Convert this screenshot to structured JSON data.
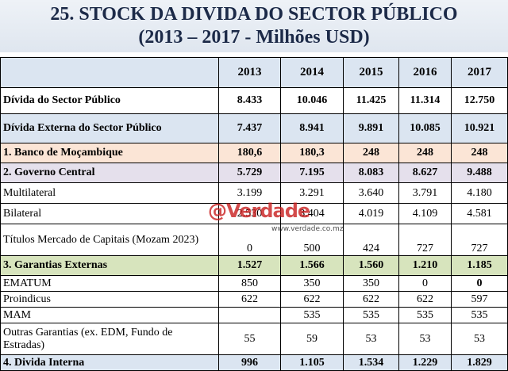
{
  "title": {
    "line1": "25. STOCK DA DIVIDA DO SECTOR PÚBLICO",
    "line2": "(2013 – 2017 - Milhões USD)"
  },
  "table": {
    "columns": [
      "2013",
      "2014",
      "2015",
      "2016",
      "2017"
    ],
    "rows": [
      {
        "label": "Dívida do Sector Público",
        "cells": [
          "8.433",
          "10.046",
          "11.425",
          "11.314",
          "12.750"
        ]
      },
      {
        "label": "Dívida Externa do Sector Público",
        "cells": [
          "7.437",
          "8.941",
          "9.891",
          "10.085",
          "10.921"
        ]
      },
      {
        "label": "1. Banco de Moçambique",
        "cells": [
          "180,6",
          "180,3",
          "248",
          "248",
          "248"
        ]
      },
      {
        "label": "2. Governo Central",
        "cells": [
          "5.729",
          "7.195",
          "8.083",
          "8.627",
          "9.488"
        ]
      },
      {
        "label": "Multilateral",
        "cells": [
          "3.199",
          "3.291",
          "3.640",
          "3.791",
          "4.180"
        ]
      },
      {
        "label": "Bilateral",
        "cells": [
          "2.530",
          "3.404",
          "4.019",
          "4.109",
          "4.581"
        ]
      },
      {
        "label": "Títulos Mercado de Capitais (Mozam 2023)",
        "cells": [
          "0",
          "500",
          "424",
          "727",
          "727"
        ]
      },
      {
        "label": "3. Garantias Externas",
        "cells": [
          "1.527",
          "1.566",
          "1.560",
          "1.210",
          "1.185"
        ]
      },
      {
        "label": "EMATUM",
        "cells": [
          "850",
          "350",
          "350",
          "0",
          "0"
        ]
      },
      {
        "label": "Proindicus",
        "cells": [
          "622",
          "622",
          "622",
          "622",
          "597"
        ]
      },
      {
        "label": "MAM",
        "cells": [
          null,
          "535",
          "535",
          "535",
          "535"
        ]
      },
      {
        "label": "Outras Garantias (ex. EDM, Fundo de Estradas)",
        "cells": [
          "55",
          "59",
          "53",
          "53",
          "53"
        ]
      },
      {
        "label": "4. Divida Interna",
        "cells": [
          "996",
          "1.105",
          "1.534",
          "1.229",
          "1.829"
        ]
      }
    ]
  },
  "watermark": {
    "logo": "@Verdade",
    "url": "www.verdade.co.mz"
  }
}
